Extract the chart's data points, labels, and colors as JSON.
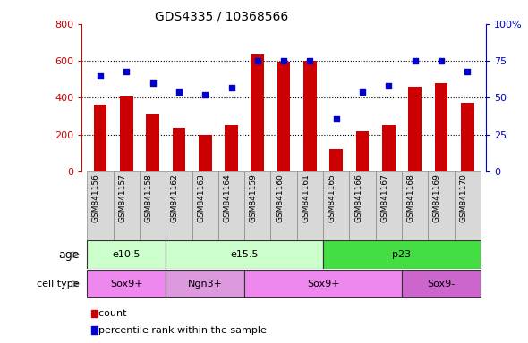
{
  "title": "GDS4335 / 10368566",
  "samples": [
    "GSM841156",
    "GSM841157",
    "GSM841158",
    "GSM841162",
    "GSM841163",
    "GSM841164",
    "GSM841159",
    "GSM841160",
    "GSM841161",
    "GSM841165",
    "GSM841166",
    "GSM841167",
    "GSM841168",
    "GSM841169",
    "GSM841170"
  ],
  "counts": [
    365,
    405,
    310,
    235,
    200,
    250,
    635,
    595,
    600,
    120,
    220,
    250,
    460,
    480,
    375
  ],
  "percentiles": [
    65,
    68,
    60,
    54,
    52,
    57,
    75,
    75,
    75,
    36,
    54,
    58,
    75,
    75,
    68
  ],
  "ylim_left": [
    0,
    800
  ],
  "ylim_right": [
    0,
    100
  ],
  "yticks_left": [
    0,
    200,
    400,
    600,
    800
  ],
  "yticks_right": [
    0,
    25,
    50,
    75,
    100
  ],
  "age_groups": [
    {
      "label": "e10.5",
      "start": 0,
      "end": 3,
      "color": "#ccffcc"
    },
    {
      "label": "e15.5",
      "start": 3,
      "end": 9,
      "color": "#ccffcc"
    },
    {
      "label": "p23",
      "start": 9,
      "end": 15,
      "color": "#44dd44"
    }
  ],
  "cell_type_groups": [
    {
      "label": "Sox9+",
      "start": 0,
      "end": 3,
      "color": "#ee88ee"
    },
    {
      "label": "Ngn3+",
      "start": 3,
      "end": 6,
      "color": "#dd99dd"
    },
    {
      "label": "Sox9+",
      "start": 6,
      "end": 12,
      "color": "#ee88ee"
    },
    {
      "label": "Sox9-",
      "start": 12,
      "end": 15,
      "color": "#cc66cc"
    }
  ],
  "bar_color": "#cc0000",
  "dot_color": "#0000cc",
  "left_axis_color": "#cc0000",
  "right_axis_color": "#0000cc",
  "xticklabel_bg": "#d8d8d8",
  "xticklabel_border": "#aaaaaa"
}
